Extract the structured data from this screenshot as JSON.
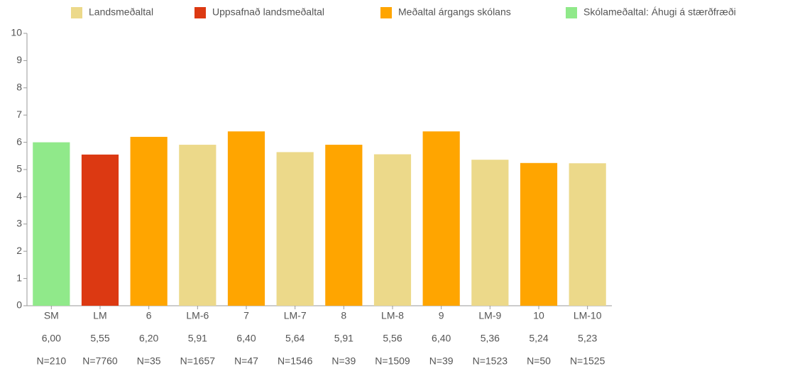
{
  "chart_data": {
    "type": "bar",
    "legend": [
      {
        "name": "Landsmeðaltal",
        "color": "#ecd98a"
      },
      {
        "name": "Uppsafnað landsmeðaltal",
        "color": "#dc3912"
      },
      {
        "name": "Meðaltal árgangs skólans",
        "color": "#ffa500"
      },
      {
        "name": "Skólameðaltal: Áhugi á stærðfræði",
        "color": "#90e98a"
      }
    ],
    "categories": [
      "SM",
      "LM",
      "6",
      "LM-6",
      "7",
      "LM-7",
      "8",
      "LM-8",
      "9",
      "LM-9",
      "10",
      "LM-10"
    ],
    "values": [
      6.0,
      5.55,
      6.2,
      5.91,
      6.4,
      5.64,
      5.91,
      5.56,
      6.4,
      5.36,
      5.24,
      5.23
    ],
    "value_labels": [
      "6,00",
      "5,55",
      "6,20",
      "5,91",
      "6,40",
      "5,64",
      "5,91",
      "5,56",
      "6,40",
      "5,36",
      "5,24",
      "5,23"
    ],
    "n_labels": [
      "N=210",
      "N=7760",
      "N=35",
      "N=1657",
      "N=47",
      "N=1546",
      "N=39",
      "N=1509",
      "N=39",
      "N=1523",
      "N=50",
      "N=1525"
    ],
    "colors": [
      "#90e98a",
      "#dc3912",
      "#ffa500",
      "#ecd98a",
      "#ffa500",
      "#ecd98a",
      "#ffa500",
      "#ecd98a",
      "#ffa500",
      "#ecd98a",
      "#ffa500",
      "#ecd98a"
    ],
    "ylim": [
      0,
      10
    ],
    "yticks": [
      0,
      1,
      2,
      3,
      4,
      5,
      6,
      7,
      8,
      9,
      10
    ],
    "grid": false
  }
}
